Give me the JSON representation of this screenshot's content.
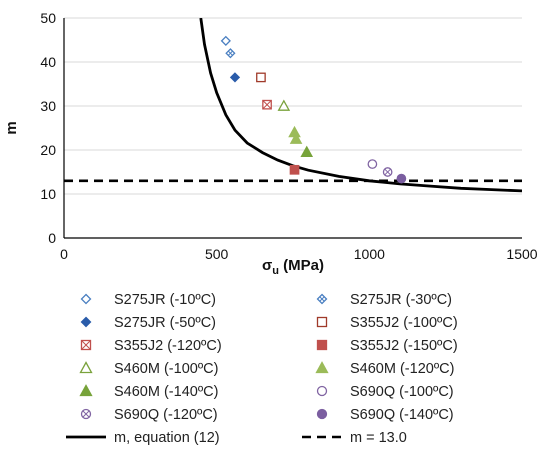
{
  "chart_data": {
    "type": "scatter",
    "xlabel_main": "σ",
    "xlabel_sub": "u",
    "xlabel_unit": " (MPa)",
    "ylabel": "m",
    "xlim": [
      0,
      1500
    ],
    "ylim": [
      0,
      50
    ],
    "xticks": [
      0,
      500,
      1000,
      1500
    ],
    "yticks": [
      0,
      10,
      20,
      30,
      40,
      50
    ],
    "grid": "horizontal",
    "legend_position": "bottom",
    "series": [
      {
        "name": "S275JR (-10ºC)",
        "marker": "diamond-open",
        "color": "#4a7fc1",
        "points": [
          {
            "x": 530,
            "y": 44.8
          }
        ]
      },
      {
        "name": "S275JR (-30ºC)",
        "marker": "diamond-cross",
        "color": "#4a7fc1",
        "points": [
          {
            "x": 545,
            "y": 42
          }
        ]
      },
      {
        "name": "S275JR (-50ºC)",
        "marker": "diamond-filled",
        "color": "#2a5caa",
        "points": [
          {
            "x": 560,
            "y": 36.5
          }
        ]
      },
      {
        "name": "S355J2 (-100ºC)",
        "marker": "square-open",
        "color": "#a03a2a",
        "points": [
          {
            "x": 645,
            "y": 36.5
          }
        ]
      },
      {
        "name": "S355J2 (-120ºC)",
        "marker": "square-cross",
        "color": "#c0504d",
        "points": [
          {
            "x": 665,
            "y": 30.3
          }
        ]
      },
      {
        "name": "S355J2 (-150ºC)",
        "marker": "square-filled",
        "color": "#c0504d",
        "points": [
          {
            "x": 755,
            "y": 15.5
          }
        ]
      },
      {
        "name": "S460M (-100ºC)",
        "marker": "triangle-open",
        "color": "#7aa23c",
        "points": [
          {
            "x": 720,
            "y": 30
          }
        ]
      },
      {
        "name": "S460M (-120ºC)",
        "marker": "triangle-filled-light",
        "color": "#9bbb59",
        "points": [
          {
            "x": 755,
            "y": 24
          },
          {
            "x": 760,
            "y": 22.5
          }
        ]
      },
      {
        "name": "S460M (-140ºC)",
        "marker": "triangle-filled",
        "color": "#77a33a",
        "points": [
          {
            "x": 795,
            "y": 19.5
          }
        ]
      },
      {
        "name": "S690Q (-100ºC)",
        "marker": "circle-open",
        "color": "#8064a2",
        "points": [
          {
            "x": 1010,
            "y": 16.8
          }
        ]
      },
      {
        "name": "S690Q (-120ºC)",
        "marker": "circle-cross",
        "color": "#8064a2",
        "points": [
          {
            "x": 1060,
            "y": 15
          }
        ]
      },
      {
        "name": "S690Q (-140ºC)",
        "marker": "circle-filled",
        "color": "#7b5ea0",
        "points": [
          {
            "x": 1105,
            "y": 13.5
          }
        ]
      }
    ],
    "curve": {
      "name": "m, equation (12)",
      "style": "solid",
      "color": "#000000",
      "points": [
        {
          "x": 448,
          "y": 50
        },
        {
          "x": 460,
          "y": 44
        },
        {
          "x": 480,
          "y": 37.5
        },
        {
          "x": 500,
          "y": 33
        },
        {
          "x": 530,
          "y": 28
        },
        {
          "x": 560,
          "y": 24.5
        },
        {
          "x": 600,
          "y": 21.6
        },
        {
          "x": 650,
          "y": 19.4
        },
        {
          "x": 700,
          "y": 17.7
        },
        {
          "x": 750,
          "y": 16.4
        },
        {
          "x": 800,
          "y": 15.4
        },
        {
          "x": 900,
          "y": 14
        },
        {
          "x": 1000,
          "y": 13
        },
        {
          "x": 1100,
          "y": 12.3
        },
        {
          "x": 1200,
          "y": 11.8
        },
        {
          "x": 1300,
          "y": 11.3
        },
        {
          "x": 1400,
          "y": 11
        },
        {
          "x": 1500,
          "y": 10.7
        }
      ]
    },
    "hline": {
      "name": "m = 13.0",
      "y": 13.0,
      "style": "dashed",
      "color": "#000000"
    }
  }
}
